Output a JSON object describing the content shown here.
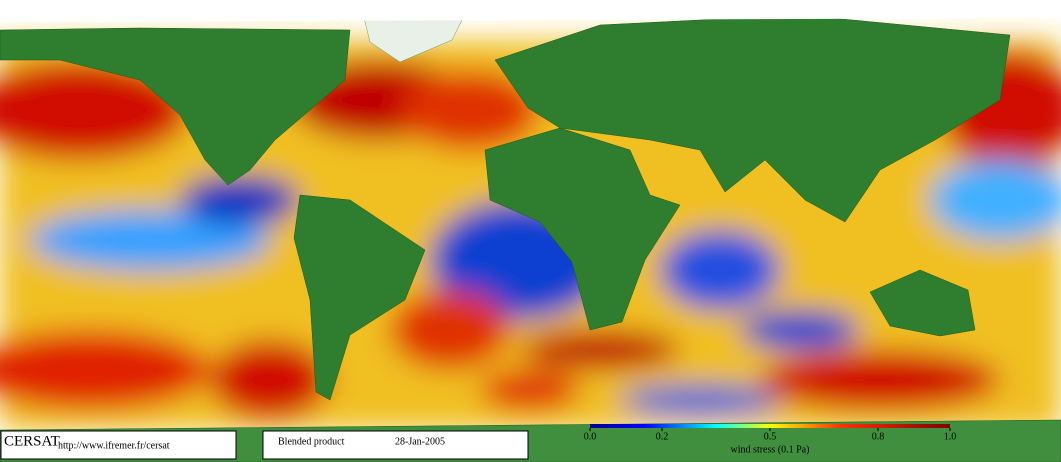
{
  "footer": {
    "logo": "CERSAT",
    "url": "http://www.ifremer.fr/cersat",
    "product": "Blended product",
    "date": "28-Jan-2005"
  },
  "colorbar": {
    "lim": [
      0,
      1
    ],
    "ticks": [
      {
        "value": 0,
        "label": "0.0"
      },
      {
        "value": 0.2,
        "label": "0.2"
      },
      {
        "value": 0.5,
        "label": "0.5"
      },
      {
        "value": 0.8,
        "label": "0.8"
      },
      {
        "value": 1,
        "label": "1.0"
      }
    ],
    "label": "wind stress (0.1 Pa)"
  }
}
